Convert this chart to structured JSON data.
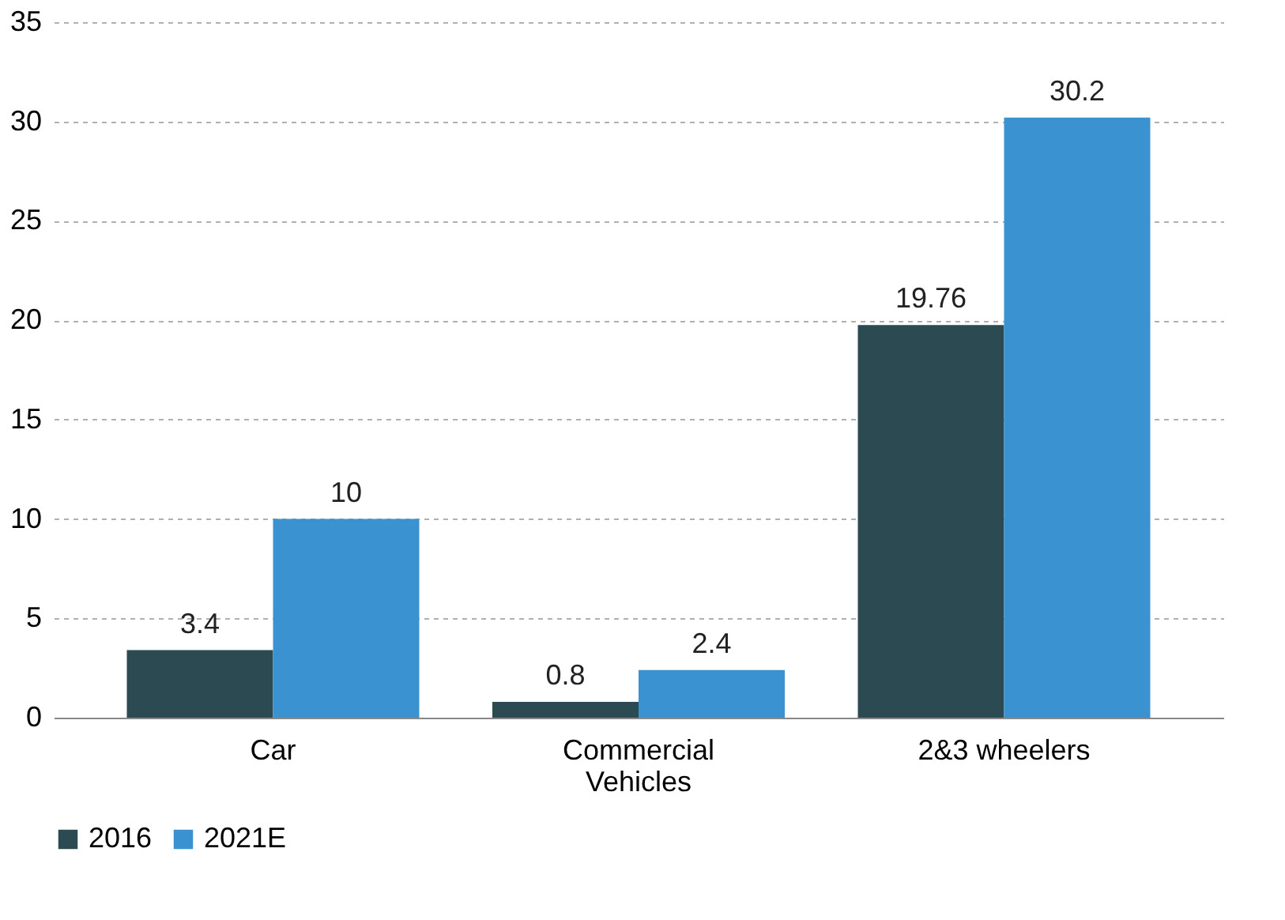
{
  "chart_data": {
    "type": "bar",
    "categories": [
      "Car",
      "Commercial Vehicles",
      "2&3 wheelers"
    ],
    "series": [
      {
        "name": "2016",
        "color": "#2b4a52",
        "values": [
          3.4,
          0.8,
          19.76
        ]
      },
      {
        "name": "2021E",
        "color": "#3a93d0",
        "values": [
          10,
          2.4,
          30.2
        ]
      }
    ],
    "ylim": [
      0,
      35
    ],
    "yticks": [
      0,
      5,
      10,
      15,
      20,
      25,
      30,
      35
    ],
    "grid": "y",
    "legend": "bottom",
    "data_labels": true
  }
}
